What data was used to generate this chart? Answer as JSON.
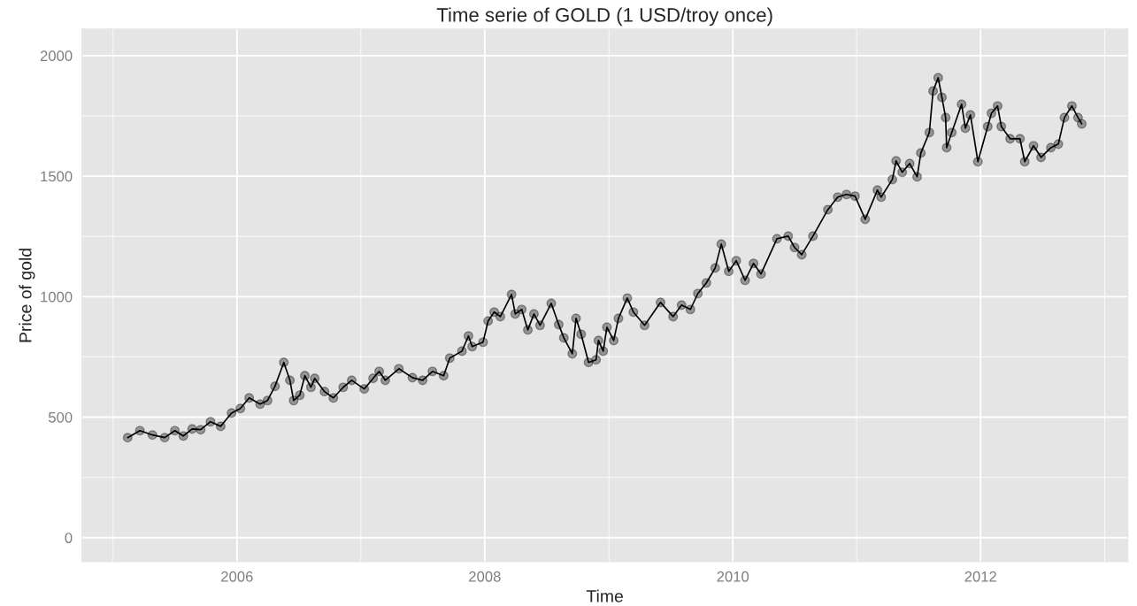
{
  "chart_data": {
    "type": "line",
    "title": "Time serie of GOLD (1 USD/troy once)",
    "xlabel": "Time",
    "ylabel": "Price of gold",
    "x": [
      "2005-02-13",
      "2005-03-21",
      "2005-04-27",
      "2005-06-02",
      "2005-07-02",
      "2005-07-27",
      "2005-08-22",
      "2005-09-16",
      "2005-10-15",
      "2005-11-14",
      "2005-12-16",
      "2006-01-11",
      "2006-02-06",
      "2006-03-10",
      "2006-04-01",
      "2006-04-23",
      "2006-05-19",
      "2006-06-06",
      "2006-06-17",
      "2006-07-05",
      "2006-07-20",
      "2006-08-07",
      "2006-08-18",
      "2006-09-16",
      "2006-10-12",
      "2006-11-10",
      "2006-12-05",
      "2007-01-11",
      "2007-02-06",
      "2007-02-24",
      "2007-03-14",
      "2007-04-23",
      "2007-06-02",
      "2007-07-02",
      "2007-07-31",
      "2007-09-02",
      "2007-09-20",
      "2007-10-26",
      "2007-11-14",
      "2007-11-25",
      "2007-12-27",
      "2008-01-11",
      "2008-01-29",
      "2008-02-16",
      "2008-03-20",
      "2008-03-31",
      "2008-04-19",
      "2008-05-07",
      "2008-05-25",
      "2008-06-12",
      "2008-07-15",
      "2008-08-06",
      "2008-08-21",
      "2008-09-15",
      "2008-09-26",
      "2008-10-11",
      "2008-11-02",
      "2008-11-24",
      "2008-12-01",
      "2008-12-15",
      "2008-12-26",
      "2009-01-15",
      "2009-01-29",
      "2009-02-24",
      "2009-03-14",
      "2009-04-16",
      "2009-06-02",
      "2009-07-09",
      "2009-08-03",
      "2009-08-29",
      "2009-09-20",
      "2009-10-15",
      "2009-11-10",
      "2009-11-28",
      "2009-12-20",
      "2010-01-11",
      "2010-02-06",
      "2010-03-03",
      "2010-03-25",
      "2010-05-11",
      "2010-06-13",
      "2010-07-02",
      "2010-07-23",
      "2010-08-25",
      "2010-10-08",
      "2010-11-06",
      "2010-12-02",
      "2010-12-27",
      "2011-01-26",
      "2011-03-03",
      "2011-03-14",
      "2011-04-16",
      "2011-04-27",
      "2011-05-15",
      "2011-06-06",
      "2011-06-28",
      "2011-07-09",
      "2011-08-03",
      "2011-08-14",
      "2011-08-29",
      "2011-09-09",
      "2011-09-20",
      "2011-09-23",
      "2011-10-08",
      "2011-11-06",
      "2011-11-17",
      "2011-12-02",
      "2011-12-24",
      "2012-01-22",
      "2012-02-02",
      "2012-02-20",
      "2012-03-02",
      "2012-03-28",
      "2012-04-26",
      "2012-05-10",
      "2012-06-05",
      "2012-06-27",
      "2012-07-26",
      "2012-08-17",
      "2012-09-04",
      "2012-09-26",
      "2012-10-14",
      "2012-10-25"
    ],
    "series": [
      {
        "color": "#000000",
        "values": [
          415,
          444,
          426,
          415,
          444,
          422,
          451,
          448,
          481,
          462,
          517,
          536,
          580,
          554,
          569,
          628,
          727,
          653,
          569,
          591,
          672,
          624,
          661,
          606,
          580,
          624,
          653,
          617,
          661,
          690,
          653,
          701,
          664,
          653,
          690,
          672,
          745,
          774,
          837,
          793,
          811,
          899,
          936,
          917,
          1009,
          928,
          947,
          862,
          928,
          881,
          972,
          884,
          829,
          763,
          910,
          844,
          727,
          738,
          818,
          774,
          873,
          818,
          910,
          994,
          936,
          881,
          976,
          917,
          965,
          947,
          1013,
          1057,
          1119,
          1218,
          1105,
          1149,
          1068,
          1138,
          1094,
          1240,
          1251,
          1204,
          1174,
          1251,
          1361,
          1413,
          1424,
          1417,
          1321,
          1442,
          1413,
          1486,
          1563,
          1516,
          1552,
          1497,
          1596,
          1681,
          1853,
          1908,
          1827,
          1743,
          1618,
          1681,
          1798,
          1699,
          1754,
          1560,
          1706,
          1761,
          1791,
          1706,
          1655,
          1655,
          1560,
          1626,
          1578,
          1618,
          1633,
          1743,
          1791,
          1743,
          1717
        ]
      }
    ],
    "marker": "circle",
    "line_style": "solid",
    "grid": true,
    "xlim": [
      "2004-10-01",
      "2013-03-10"
    ],
    "xticks": [
      {
        "value": "2005-01-01",
        "label": null
      },
      {
        "value": "2006-01-01",
        "label": "2006"
      },
      {
        "value": "2007-01-01",
        "label": null
      },
      {
        "value": "2008-01-01",
        "label": "2008"
      },
      {
        "value": "2009-01-01",
        "label": null
      },
      {
        "value": "2010-01-01",
        "label": "2010"
      },
      {
        "value": "2011-01-01",
        "label": null
      },
      {
        "value": "2012-01-01",
        "label": "2012"
      },
      {
        "value": "2013-01-01",
        "label": null
      }
    ],
    "ylim": [
      -100,
      2110
    ],
    "yticks": [
      0,
      {
        "value": 250,
        "label": null
      },
      500,
      {
        "value": 750,
        "label": null
      },
      1000,
      {
        "value": 1250,
        "label": null
      },
      1500,
      {
        "value": 1750,
        "label": null
      },
      2000
    ]
  }
}
